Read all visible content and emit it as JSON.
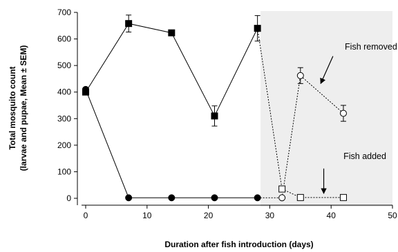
{
  "chart_data": {
    "type": "line",
    "xlabel": "Duration after fish introduction (days)",
    "ylabel_line1": "Total mosquito count",
    "ylabel_line2": "(larvae and pupae, Mean ± SEM)",
    "xlim": [
      0,
      50
    ],
    "ylim": [
      0,
      700
    ],
    "x_ticks": [
      0,
      10,
      20,
      30,
      40,
      50
    ],
    "y_ticks": [
      0,
      100,
      200,
      300,
      400,
      500,
      600,
      700
    ],
    "grid": false,
    "shaded_region_x": [
      28.5,
      50
    ],
    "shaded_color": "#eeeeee",
    "series": [
      {
        "marker": "square",
        "style": "solid",
        "fill": "#000000",
        "points": [
          {
            "x": 0,
            "y": 400,
            "err": 0
          },
          {
            "x": 7,
            "y": 658,
            "err": 32
          },
          {
            "x": 14,
            "y": 623,
            "err": 0
          },
          {
            "x": 21,
            "y": 310,
            "err": 38
          },
          {
            "x": 28,
            "y": 640,
            "err": 48
          }
        ]
      },
      {
        "marker": "square",
        "style": "dashed",
        "fill": "#ffffff",
        "points": [
          {
            "x": 32,
            "y": 35,
            "err": 0
          },
          {
            "x": 35,
            "y": 3,
            "err": 0
          },
          {
            "x": 42,
            "y": 3,
            "err": 0
          }
        ]
      },
      {
        "marker": "circle",
        "style": "solid",
        "fill": "#000000",
        "points": [
          {
            "x": 0,
            "y": 410,
            "err": 0
          },
          {
            "x": 7,
            "y": 2,
            "err": 0
          },
          {
            "x": 14,
            "y": 2,
            "err": 0
          },
          {
            "x": 21,
            "y": 2,
            "err": 0
          },
          {
            "x": 28,
            "y": 2,
            "err": 0
          }
        ]
      },
      {
        "marker": "circle",
        "style": "dashed",
        "fill": "#ffffff",
        "points": [
          {
            "x": 32,
            "y": 2,
            "err": 0
          },
          {
            "x": 35,
            "y": 462,
            "err": 30
          },
          {
            "x": 42,
            "y": 320,
            "err": 30
          }
        ]
      }
    ],
    "connectors": [
      {
        "from": [
          28,
          640
        ],
        "to": [
          32,
          35
        ],
        "style": "dashed"
      },
      {
        "from": [
          28,
          2
        ],
        "to": [
          32,
          2
        ],
        "style": "dashed"
      }
    ],
    "annotations": [
      {
        "text": "Fish removed",
        "text_at": [
          46.5,
          560
        ],
        "arrow_from": [
          40.3,
          535
        ],
        "arrow_to": [
          38.3,
          432
        ]
      },
      {
        "text": "Fish added",
        "text_at": [
          45.5,
          148
        ],
        "arrow_from": [
          38.8,
          112
        ],
        "arrow_to": [
          38.8,
          18
        ]
      }
    ]
  }
}
